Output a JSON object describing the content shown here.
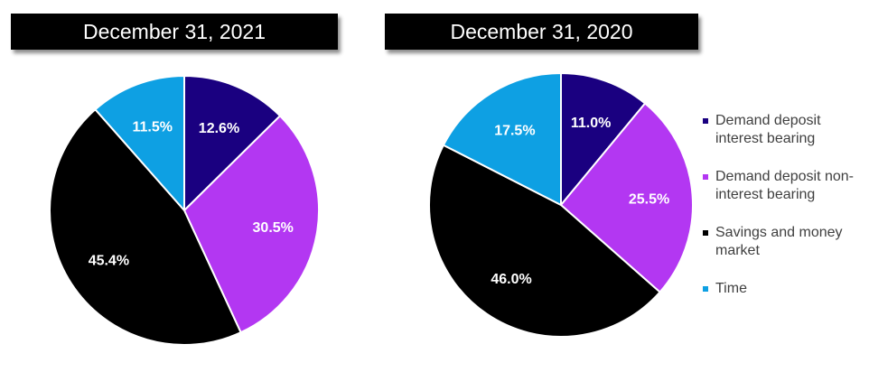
{
  "colors": {
    "demand_interest": "#1a0080",
    "demand_non_interest": "#b337f2",
    "savings": "#000000",
    "time": "#0ea0e3"
  },
  "legend": [
    {
      "label": "Demand deposit interest bearing",
      "color": "#1a0080"
    },
    {
      "label": "Demand deposit non-interest bearing",
      "color": "#b337f2"
    },
    {
      "label": "Savings and money market",
      "color": "#000000"
    },
    {
      "label": "Time",
      "color": "#0ea0e3"
    }
  ],
  "chart_data": [
    {
      "type": "pie",
      "title": "December 31, 2021",
      "categories": [
        "Demand deposit interest bearing",
        "Demand deposit non-interest bearing",
        "Savings and money market",
        "Time"
      ],
      "values": [
        12.6,
        30.5,
        45.4,
        11.5
      ],
      "labels": [
        "12.6%",
        "30.5%",
        "45.4%",
        "11.5%"
      ],
      "colors": [
        "#1a0080",
        "#b337f2",
        "#000000",
        "#0ea0e3"
      ],
      "legend": "right"
    },
    {
      "type": "pie",
      "title": "December 31, 2020",
      "categories": [
        "Demand deposit interest bearing",
        "Demand deposit non-interest bearing",
        "Savings and money market",
        "Time"
      ],
      "values": [
        11.0,
        25.5,
        46.0,
        17.5
      ],
      "labels": [
        "11.0%",
        "25.5%",
        "46.0%",
        "17.5%"
      ],
      "colors": [
        "#1a0080",
        "#b337f2",
        "#000000",
        "#0ea0e3"
      ],
      "legend": "right"
    }
  ]
}
